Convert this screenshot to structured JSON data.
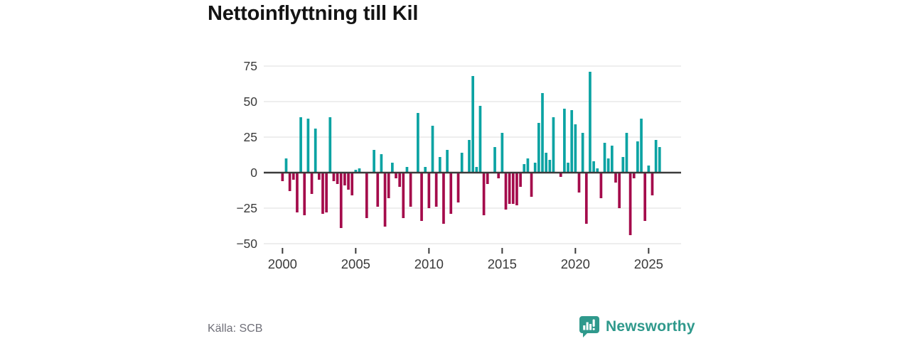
{
  "title": "Nettoinflyttning till Kil",
  "source": "Källa: SCB",
  "brand": {
    "name": "Newsworthy",
    "color": "#2f998c",
    "logo_icon": "bar-chart-speech-bubble-icon"
  },
  "chart_data": {
    "type": "bar",
    "title": "Nettoinflyttning till Kil",
    "xlabel": "",
    "ylabel": "",
    "ylim": [
      -50,
      75
    ],
    "grid": true,
    "legend": false,
    "frequency": "quarterly",
    "positive_color": "#0ba3a3",
    "negative_color": "#a40b4b",
    "zero_line_color": "#3b3b3b",
    "grid_color": "#e3e3e3",
    "axis_text_color": "#3a3a3a",
    "y_ticks": [
      {
        "label": "75",
        "value": 75
      },
      {
        "label": "50",
        "value": 50
      },
      {
        "label": "25",
        "value": 25
      },
      {
        "label": "0",
        "value": 0
      },
      {
        "label": "−25",
        "value": -25
      },
      {
        "label": "−50",
        "value": -50
      }
    ],
    "x_ticks": [
      {
        "label": "2000",
        "quarter_index": 0
      },
      {
        "label": "2005",
        "quarter_index": 20
      },
      {
        "label": "2010",
        "quarter_index": 40
      },
      {
        "label": "2015",
        "quarter_index": 60
      },
      {
        "label": "2020",
        "quarter_index": 80
      },
      {
        "label": "2025",
        "quarter_index": 100
      }
    ],
    "categories": [
      "2000Q1",
      "2000Q2",
      "2000Q3",
      "2000Q4",
      "2001Q1",
      "2001Q2",
      "2001Q3",
      "2001Q4",
      "2002Q1",
      "2002Q2",
      "2002Q3",
      "2002Q4",
      "2003Q1",
      "2003Q2",
      "2003Q3",
      "2003Q4",
      "2004Q1",
      "2004Q2",
      "2004Q3",
      "2004Q4",
      "2005Q1",
      "2005Q2",
      "2005Q3",
      "2005Q4",
      "2006Q1",
      "2006Q2",
      "2006Q3",
      "2006Q4",
      "2007Q1",
      "2007Q2",
      "2007Q3",
      "2007Q4",
      "2008Q1",
      "2008Q2",
      "2008Q3",
      "2008Q4",
      "2009Q1",
      "2009Q2",
      "2009Q3",
      "2009Q4",
      "2010Q1",
      "2010Q2",
      "2010Q3",
      "2010Q4",
      "2011Q1",
      "2011Q2",
      "2011Q3",
      "2011Q4",
      "2012Q1",
      "2012Q2",
      "2012Q3",
      "2012Q4",
      "2013Q1",
      "2013Q2",
      "2013Q3",
      "2013Q4",
      "2014Q1",
      "2014Q2",
      "2014Q3",
      "2014Q4",
      "2015Q1",
      "2015Q2",
      "2015Q3",
      "2015Q4",
      "2016Q1",
      "2016Q2",
      "2016Q3",
      "2016Q4",
      "2017Q1",
      "2017Q2",
      "2017Q3",
      "2017Q4",
      "2018Q1",
      "2018Q2",
      "2018Q3",
      "2018Q4",
      "2019Q1",
      "2019Q2",
      "2019Q3",
      "2019Q4",
      "2020Q1",
      "2020Q2",
      "2020Q3",
      "2020Q4",
      "2021Q1",
      "2021Q2",
      "2021Q3",
      "2021Q4",
      "2022Q1",
      "2022Q2",
      "2022Q3",
      "2022Q4",
      "2023Q1",
      "2023Q2",
      "2023Q3",
      "2023Q4",
      "2024Q1",
      "2024Q2",
      "2024Q3",
      "2024Q4",
      "2025Q1",
      "2025Q2",
      "2025Q3",
      "2025Q4"
    ],
    "values": [
      -6,
      10,
      -13,
      -5,
      -28,
      39,
      -30,
      38,
      -15,
      31,
      -5,
      -29,
      -28,
      39,
      -6,
      -8,
      -39,
      -9,
      -12,
      -16,
      2,
      3,
      0,
      -32,
      0,
      16,
      -24,
      13,
      -38,
      -18,
      7,
      -4,
      -10,
      -32,
      4,
      -24,
      0,
      42,
      -34,
      4,
      -25,
      33,
      -24,
      11,
      -36,
      16,
      -29,
      0,
      -21,
      14,
      0,
      23,
      68,
      4,
      47,
      -30,
      -8,
      0,
      18,
      -4,
      28,
      -26,
      -22,
      -22,
      -23,
      -10,
      6,
      10,
      -17,
      7,
      35,
      56,
      14,
      9,
      39,
      0,
      -3,
      45,
      7,
      44,
      34,
      -14,
      28,
      -36,
      71,
      8,
      3,
      -18,
      21,
      10,
      19,
      -7,
      -25,
      11,
      28,
      -44,
      -4,
      22,
      38,
      -34,
      5,
      -16,
      23,
      18
    ]
  }
}
